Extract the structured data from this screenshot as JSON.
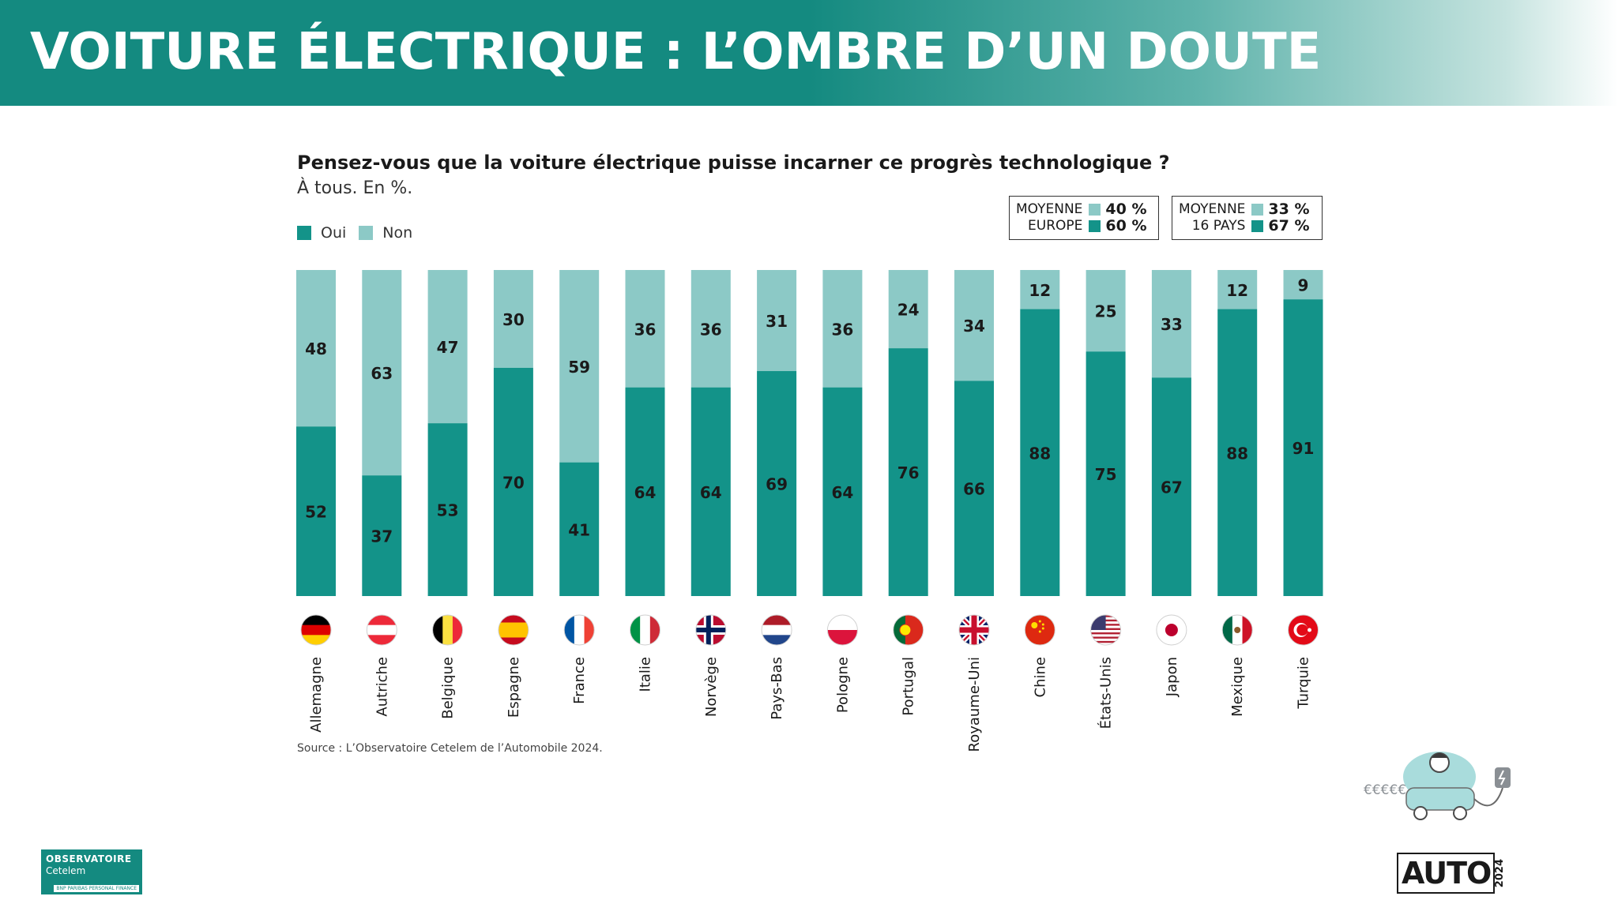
{
  "header": {
    "title": "VOITURE ÉLECTRIQUE : L’OMBRE D’UN DOUTE"
  },
  "colors": {
    "banner": "#148a80",
    "oui": "#139389",
    "non": "#8cc9c6"
  },
  "legend": {
    "oui": "Oui",
    "non": "Non"
  },
  "averages": [
    {
      "label1": "MOYENNE",
      "label2": "EUROPE",
      "non": "40 %",
      "oui": "60 %"
    },
    {
      "label1": "MOYENNE",
      "label2": "16 PAYS",
      "non": "33 %",
      "oui": "67 %"
    }
  ],
  "chart_data": {
    "type": "bar",
    "stacked": true,
    "title": "Pensez-vous que la voiture électrique puisse incarner ce progrès technologique ?",
    "subtitle": "À tous. En %.",
    "categories": [
      "Allemagne",
      "Autriche",
      "Belgique",
      "Espagne",
      "France",
      "Italie",
      "Norvège",
      "Pays-Bas",
      "Pologne",
      "Portugal",
      "Royaume-Uni",
      "Chine",
      "États-Unis",
      "Japon",
      "Mexique",
      "Turquie"
    ],
    "series": [
      {
        "name": "Oui",
        "values": [
          52,
          37,
          53,
          70,
          41,
          64,
          64,
          69,
          64,
          76,
          66,
          88,
          75,
          67,
          88,
          91
        ]
      },
      {
        "name": "Non",
        "values": [
          48,
          63,
          47,
          30,
          59,
          36,
          36,
          31,
          36,
          24,
          34,
          12,
          25,
          33,
          12,
          9
        ]
      }
    ],
    "ylim": [
      0,
      100
    ],
    "legend_position": "top-left",
    "grid": false
  },
  "flags": [
    "germany-flag",
    "austria-flag",
    "belgium-flag",
    "spain-flag",
    "france-flag",
    "italy-flag",
    "norway-flag",
    "netherlands-flag",
    "poland-flag",
    "portugal-flag",
    "uk-flag",
    "china-flag",
    "usa-flag",
    "japan-flag",
    "mexico-flag",
    "turkey-flag"
  ],
  "source": "Source : L’Observatoire Cetelem de l’Automobile 2024.",
  "logo_left": {
    "line1": "OBSERVATOIRE",
    "line2": "Cetelem",
    "line3": "BNP PARIBAS PERSONAL FINANCE"
  },
  "logo_right": {
    "text": "AUTO",
    "year": "2024"
  },
  "illustration": {
    "money_text": "€€€€€"
  }
}
